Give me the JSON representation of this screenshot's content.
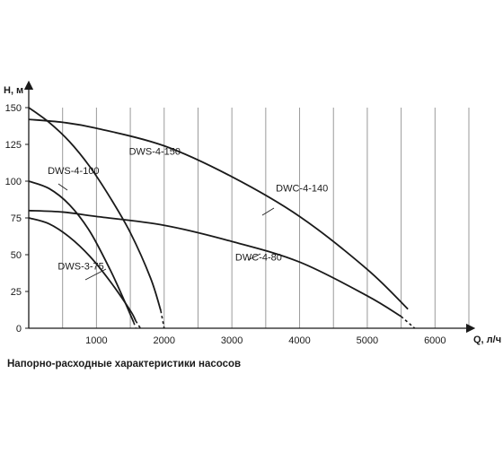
{
  "caption": "Напорно-расходные характеристики насосов",
  "chart_data": {
    "type": "line",
    "xlabel": "Q, л/ч",
    "ylabel": "H, м",
    "xlim": [
      0,
      6500
    ],
    "ylim": [
      0,
      165
    ],
    "x_ticks": [
      1000,
      2000,
      3000,
      4000,
      5000,
      6000
    ],
    "y_ticks": [
      0,
      25,
      50,
      75,
      100,
      125,
      150
    ],
    "grid": {
      "x_step": 500,
      "vertical_only": true
    },
    "series": [
      {
        "name": "DWS-4-100",
        "x": [
          0,
          300,
          600,
          900,
          1200,
          1400,
          1550,
          1580
        ],
        "y": [
          100,
          95,
          84,
          66,
          40,
          20,
          4,
          0
        ],
        "dashed_from_x": 1550,
        "label_at": [
          280,
          105
        ]
      },
      {
        "name": "DWS-4-150",
        "x": [
          0,
          300,
          600,
          900,
          1200,
          1500,
          1800,
          1950,
          2000
        ],
        "y": [
          150,
          140,
          127,
          110,
          89,
          65,
          34,
          12,
          0
        ],
        "dashed_from_x": 1950,
        "label_at": [
          1480,
          118
        ]
      },
      {
        "name": "DWS-3-75",
        "x": [
          0,
          300,
          600,
          900,
          1200,
          1500,
          1580,
          1650
        ],
        "y": [
          75,
          71,
          62,
          49,
          32,
          12,
          5,
          0
        ],
        "dashed_from_x": 1580,
        "label_at": [
          430,
          40
        ]
      },
      {
        "name": "DWC-4-140",
        "x": [
          0,
          500,
          1000,
          2000,
          3000,
          4000,
          5000,
          5600,
          6000
        ],
        "y": [
          142,
          140,
          136,
          124,
          103,
          76,
          40,
          13,
          0
        ],
        "dashed_from_x": 5800,
        "label_at": [
          3650,
          93
        ]
      },
      {
        "name": "DWC-4-80",
        "x": [
          0,
          500,
          1000,
          2000,
          3000,
          4000,
          5000,
          5500,
          5700
        ],
        "y": [
          80,
          79,
          76,
          70,
          59,
          45,
          22,
          8,
          0
        ],
        "dashed_from_x": 5500,
        "label_at": [
          3050,
          46
        ]
      }
    ]
  }
}
